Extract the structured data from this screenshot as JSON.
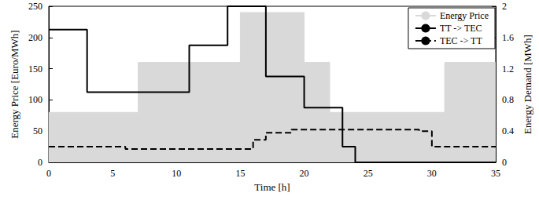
{
  "chart_data": {
    "type": "line",
    "x_label": "Time [h]",
    "y_label": "Energy Price [Euro/MWh]",
    "y2_label": "Energy Demand [MWh]",
    "xlim": [
      0,
      35
    ],
    "xticks": [
      0,
      5,
      10,
      15,
      20,
      25,
      30,
      35
    ],
    "ylim": [
      0,
      250
    ],
    "yticks": [
      0,
      50,
      100,
      150,
      200,
      250
    ],
    "y2lim": [
      0,
      2
    ],
    "y2ticks": [
      0,
      0.4,
      0.8,
      1.2,
      1.6,
      2
    ],
    "grid": false,
    "legend": "upper right",
    "series": [
      {
        "name": "Energy Price",
        "type": "area",
        "color": "#d9d9d9",
        "line_style": "solid",
        "x": [
          0,
          7,
          15,
          20,
          22,
          31,
          35
        ],
        "values": [
          80,
          160,
          240,
          160,
          80,
          160,
          160
        ]
      },
      {
        "name": "TT -> TEC",
        "type": "line",
        "color": "#000000",
        "line_style": "solid",
        "axis": "y2",
        "x": [
          0,
          3,
          11,
          14,
          17,
          20,
          23,
          24,
          35
        ],
        "values": [
          1.7,
          0.9,
          1.5,
          2.0,
          1.1,
          0.7,
          0.2,
          0,
          0
        ]
      },
      {
        "name": "TEC -> TT",
        "type": "line",
        "color": "#000000",
        "line_style": "dashed",
        "axis": "y2",
        "x": [
          0,
          6,
          16,
          17,
          19,
          29,
          30,
          35
        ],
        "values": [
          0.2,
          0.17,
          0.29,
          0.38,
          0.42,
          0.4,
          0.2,
          0.2
        ]
      }
    ]
  }
}
